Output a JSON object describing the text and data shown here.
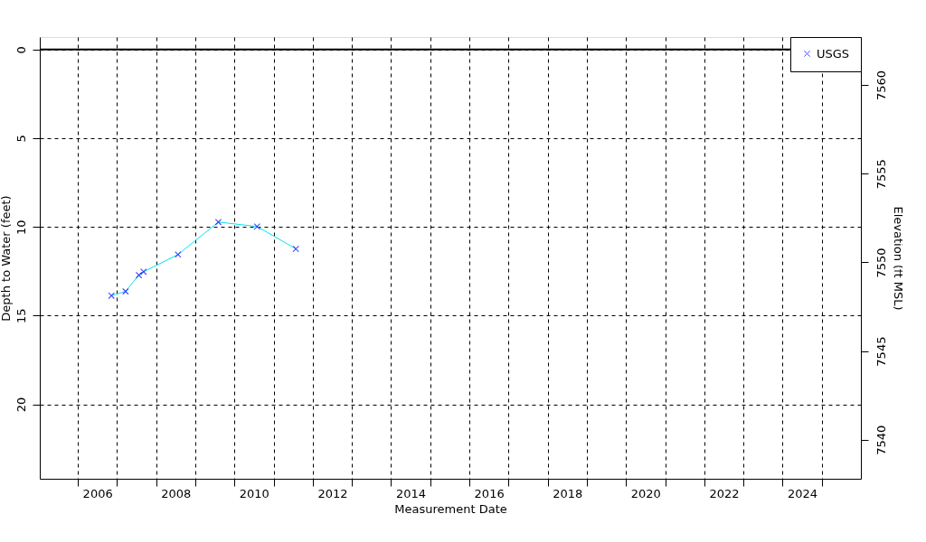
{
  "chart_data": {
    "type": "line",
    "xlabel": "Measurement Date",
    "ylabel": "Depth to Water (feet)",
    "y2label": "Elevation (ft MSL)",
    "x": [
      2006.86,
      2007.22,
      2007.56,
      2007.68,
      2008.56,
      2009.59,
      2010.58,
      2011.57
    ],
    "series": [
      {
        "color": "#00e5ee",
        "marker": "none",
        "values": [
          13.88,
          13.64,
          12.72,
          12.53,
          11.56,
          9.73,
          9.98,
          11.24
        ]
      },
      {
        "type": "scatter",
        "name": "USGS",
        "color": "#0000ff",
        "marker": "cross",
        "values": [
          13.88,
          13.64,
          12.72,
          12.53,
          11.56,
          9.73,
          9.98,
          11.24
        ]
      }
    ],
    "xlim": [
      2005.03,
      2026.0
    ],
    "xticks": [
      {
        "value": 2006,
        "label": null
      },
      {
        "value": 2006.5,
        "label": "2006"
      },
      {
        "value": 2007,
        "label": null
      },
      {
        "value": 2008,
        "label": null
      },
      {
        "value": 2008.5,
        "label": "2008"
      },
      {
        "value": 2009,
        "label": null
      },
      {
        "value": 2010,
        "label": null
      },
      {
        "value": 2010.5,
        "label": "2010"
      },
      {
        "value": 2011,
        "label": null
      },
      {
        "value": 2012,
        "label": null
      },
      {
        "value": 2012.5,
        "label": "2012"
      },
      {
        "value": 2013,
        "label": null
      },
      {
        "value": 2014,
        "label": null
      },
      {
        "value": 2014.5,
        "label": "2014"
      },
      {
        "value": 2015,
        "label": null
      },
      {
        "value": 2016,
        "label": null
      },
      {
        "value": 2016.5,
        "label": "2016"
      },
      {
        "value": 2017,
        "label": null
      },
      {
        "value": 2018,
        "label": null
      },
      {
        "value": 2018.5,
        "label": "2018"
      },
      {
        "value": 2019,
        "label": null
      },
      {
        "value": 2020,
        "label": null
      },
      {
        "value": 2020.5,
        "label": "2020"
      },
      {
        "value": 2021,
        "label": null
      },
      {
        "value": 2022,
        "label": null
      },
      {
        "value": 2022.5,
        "label": "2022"
      },
      {
        "value": 2023,
        "label": null
      },
      {
        "value": 2024,
        "label": null
      },
      {
        "value": 2024.5,
        "label": "2024"
      },
      {
        "value": 2025,
        "label": null
      }
    ],
    "ylim": [
      24.2,
      -0.7
    ],
    "yticks": [
      0,
      5,
      10,
      15,
      20
    ],
    "y2lim": [
      7537.8,
      7562.7
    ],
    "y2ticks": [
      7540,
      7545,
      7550,
      7555,
      7560
    ],
    "ref_lines": [
      {
        "axis": "y",
        "value": 0,
        "color": "#000000",
        "line_style": "solid"
      }
    ],
    "grid": true,
    "legend": "top right"
  }
}
